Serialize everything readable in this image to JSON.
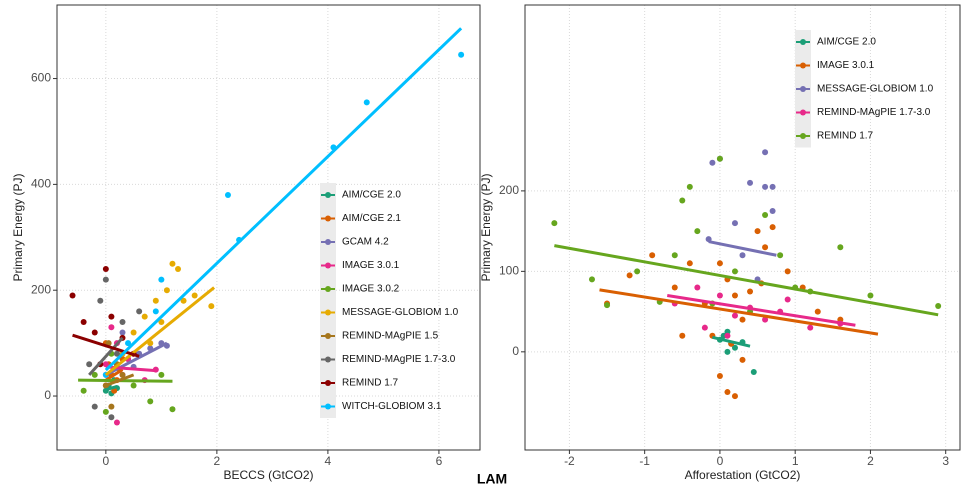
{
  "figure_label": "LAM",
  "chart_data": [
    {
      "type": "scatter",
      "x_label": "BECCS (GtCO2)",
      "y_label": "Primary Energy (PJ)",
      "xlim": [
        -0.88,
        6.74
      ],
      "ylim": [
        -102,
        739
      ],
      "xticks": [
        0,
        2,
        4,
        6
      ],
      "yticks": [
        0,
        200,
        400,
        600
      ],
      "grid": true,
      "legend": "bottom right",
      "series": [
        {
          "name": "AIM/CGE 2.0",
          "color": "#1b9e77",
          "x": [
            0,
            0.05,
            0.1,
            0.15,
            0.2
          ],
          "values": [
            10,
            20,
            5,
            30,
            15
          ],
          "fit_x": [
            0,
            0.2
          ],
          "fit_y": [
            12,
            18
          ]
        },
        {
          "name": "AIM/CGE 2.1",
          "color": "#d95f02",
          "x": [
            0,
            0.05,
            0.1,
            0.2,
            0.3,
            0,
            0.15,
            0.25
          ],
          "values": [
            20,
            60,
            40,
            30,
            70,
            100,
            10,
            50
          ],
          "fit_x": [
            0,
            0.3
          ],
          "fit_y": [
            30,
            50
          ]
        },
        {
          "name": "GCAM 4.2",
          "color": "#7570b3",
          "x": [
            0,
            0.2,
            0.4,
            0.6,
            0.8,
            1.0,
            1.1,
            0.5,
            0.3
          ],
          "values": [
            40,
            60,
            70,
            80,
            90,
            100,
            95,
            55,
            120
          ],
          "fit_x": [
            0,
            1.1
          ],
          "fit_y": [
            40,
            100
          ]
        },
        {
          "name": "IMAGE 3.0.1",
          "color": "#e7298a",
          "x": [
            0,
            0.1,
            0.2,
            0.3,
            0.5,
            0.7,
            0.9,
            0.2,
            0.4
          ],
          "values": [
            60,
            130,
            -50,
            40,
            80,
            30,
            50,
            100,
            70
          ],
          "fit_x": [
            0,
            0.9
          ],
          "fit_y": [
            55,
            48
          ]
        },
        {
          "name": "IMAGE 3.0.2",
          "color": "#66a61e",
          "x": [
            -0.4,
            -0.2,
            0,
            0.2,
            0.5,
            0.8,
            1.2,
            1.0,
            0.1
          ],
          "values": [
            10,
            40,
            -30,
            60,
            20,
            -10,
            -25,
            40,
            80
          ],
          "fit_x": [
            -0.5,
            1.2
          ],
          "fit_y": [
            30,
            28
          ]
        },
        {
          "name": "MESSAGE-GLOBIOM 1.0",
          "color": "#e6ab02",
          "x": [
            0.3,
            0.5,
            0.7,
            0.9,
            1.1,
            1.2,
            1.4,
            1.6,
            1.9,
            1.0,
            0.8,
            1.3
          ],
          "values": [
            80,
            120,
            150,
            180,
            200,
            250,
            180,
            190,
            170,
            140,
            100,
            240
          ],
          "fit_x": [
            0,
            1.95
          ],
          "fit_y": [
            40,
            205
          ]
        },
        {
          "name": "REMIND-MAgPIE 1.5",
          "color": "#a6761d",
          "x": [
            0,
            0.1,
            0.3,
            0.2,
            0.05
          ],
          "values": [
            20,
            -20,
            40,
            60,
            100
          ],
          "fit_x": [
            0,
            0.5
          ],
          "fit_y": [
            20,
            40
          ]
        },
        {
          "name": "REMIND-MAgPIE 1.7-3.0",
          "color": "#666666",
          "x": [
            -0.3,
            -0.1,
            0,
            0.1,
            0.3,
            0.6,
            0.2,
            -0.2
          ],
          "values": [
            60,
            180,
            220,
            -40,
            140,
            160,
            80,
            -20
          ],
          "fit_x": [
            -0.3,
            0.3
          ],
          "fit_y": [
            40,
            110
          ]
        },
        {
          "name": "REMIND 1.7",
          "color": "#8b0000",
          "x": [
            -0.6,
            -0.4,
            -0.2,
            0,
            0.1,
            0.3,
            -0.1,
            0.5
          ],
          "values": [
            190,
            140,
            120,
            240,
            150,
            110,
            60,
            80
          ],
          "fit_x": [
            -0.6,
            0.6
          ],
          "fit_y": [
            115,
            75
          ]
        },
        {
          "name": "WITCH-GLOBIOM 3.1",
          "color": "#00bfff",
          "x": [
            0,
            0.4,
            0.9,
            1.0,
            2.2,
            2.4,
            4.1,
            4.7,
            6.4
          ],
          "values": [
            40,
            100,
            160,
            220,
            380,
            295,
            470,
            555,
            645
          ],
          "fit_x": [
            0,
            6.4
          ],
          "fit_y": [
            49,
            695
          ]
        }
      ]
    },
    {
      "type": "scatter",
      "x_label": "Afforestation (GtCO2)",
      "y_label": "Primary Energy (PJ)",
      "xlim": [
        -2.59,
        3.19
      ],
      "ylim": [
        -122,
        431
      ],
      "xticks": [
        -2,
        -1,
        0,
        1,
        2,
        3
      ],
      "yticks": [
        0,
        100,
        200
      ],
      "grid": true,
      "legend": "top right",
      "series": [
        {
          "name": "AIM/CGE 2.0",
          "color": "#1b9e77",
          "x": [
            0,
            0.05,
            0.1,
            0.15,
            0.2,
            0.3,
            0.45,
            0.1
          ],
          "values": [
            15,
            20,
            25,
            10,
            5,
            12,
            -25,
            0
          ],
          "fit_x": [
            -0.1,
            0.4
          ],
          "fit_y": [
            18,
            7
          ]
        },
        {
          "name": "IMAGE 3.0.1",
          "color": "#d95f02",
          "x": [
            -1.5,
            -1.2,
            -0.9,
            -0.6,
            -0.4,
            -0.2,
            0,
            0.1,
            0.2,
            0.3,
            0.5,
            0.7,
            0.9,
            1.1,
            1.3,
            1.6,
            0.1,
            0.2,
            -0.5,
            0.6,
            0.4,
            0.0,
            -0.1,
            0.3,
            0.15,
            0.55
          ],
          "values": [
            60,
            95,
            120,
            80,
            110,
            60,
            -30,
            90,
            70,
            40,
            150,
            155,
            100,
            80,
            50,
            40,
            -50,
            -55,
            20,
            130,
            75,
            110,
            20,
            -10,
            10,
            85
          ],
          "fit_x": [
            -1.6,
            2.1
          ],
          "fit_y": [
            77,
            22
          ]
        },
        {
          "name": "MESSAGE-GLOBIOM 1.0",
          "color": "#7570b3",
          "x": [
            -0.1,
            0,
            0.2,
            0.4,
            0.6,
            0.7,
            0.7,
            -0.15,
            0.3,
            0.5,
            0.6
          ],
          "values": [
            235,
            240,
            160,
            210,
            205,
            205,
            175,
            140,
            120,
            90,
            248
          ],
          "fit_x": [
            -0.15,
            0.75
          ],
          "fit_y": [
            137,
            120
          ]
        },
        {
          "name": "REMIND-MAgPIE 1.7-3.0",
          "color": "#e7298a",
          "x": [
            -0.6,
            -0.3,
            0,
            0.2,
            0.4,
            0.6,
            0.9,
            1.2,
            1.6,
            0.1,
            -0.2,
            0.8
          ],
          "values": [
            60,
            80,
            70,
            45,
            55,
            40,
            65,
            30,
            35,
            20,
            30,
            50
          ],
          "fit_x": [
            -0.7,
            1.8
          ],
          "fit_y": [
            70,
            33
          ]
        },
        {
          "name": "REMIND 1.7",
          "color": "#66a61e",
          "x": [
            -2.2,
            -1.7,
            -1.5,
            -1.1,
            -0.8,
            -0.5,
            -0.3,
            0,
            0.2,
            0.6,
            1.0,
            1.6,
            2.0,
            2.9,
            -0.4,
            -0.1,
            0.4,
            0.8,
            -0.6,
            1.2
          ],
          "values": [
            160,
            90,
            58,
            100,
            62,
            188,
            150,
            240,
            100,
            170,
            80,
            130,
            70,
            57,
            205,
            60,
            50,
            120,
            120,
            75
          ],
          "fit_x": [
            -2.2,
            2.9
          ],
          "fit_y": [
            132,
            46
          ]
        }
      ]
    }
  ]
}
